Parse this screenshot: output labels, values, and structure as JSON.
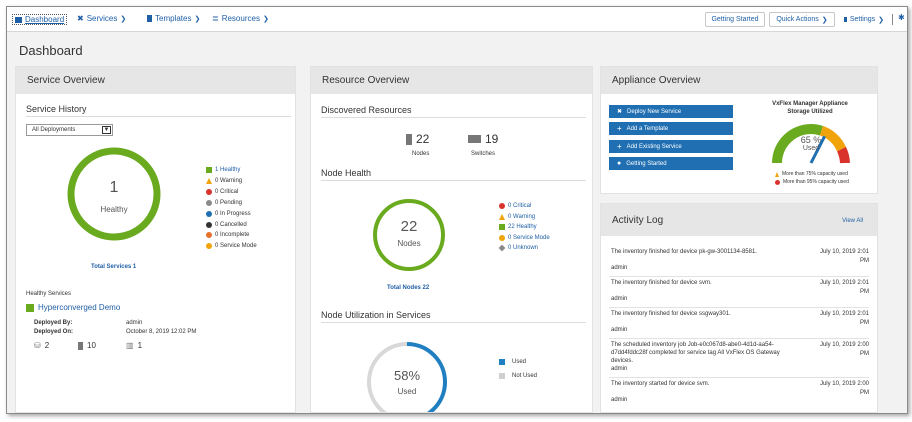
{
  "nav": {
    "dashboard": "Dashboard",
    "services": "Services",
    "templates": "Templates",
    "resources": "Resources"
  },
  "toolbar": {
    "getting_started": "Getting Started",
    "quick_actions": "Quick Actions",
    "settings": "Settings"
  },
  "page": {
    "title": "Dashboard"
  },
  "service_overview": {
    "header": "Service Overview",
    "history_title": "Service History",
    "filter_value": "All Deployments",
    "donut_value": "1",
    "donut_label": "Healthy",
    "healthy_fraction": 1.0,
    "legend": [
      {
        "text": "1 Healthy",
        "color": "#6aaa1e",
        "shape": "square",
        "link": true
      },
      {
        "text": "0 Warning",
        "color": "#f0a30a",
        "shape": "triangle",
        "link": false
      },
      {
        "text": "0 Critical",
        "color": "#d9312b",
        "shape": "circle",
        "link": false
      },
      {
        "text": "0 Pending",
        "color": "#8a8a8a",
        "shape": "circle",
        "link": false
      },
      {
        "text": "0 In Progress",
        "color": "#1f6fb2",
        "shape": "circle",
        "link": false
      },
      {
        "text": "0 Cancelled",
        "color": "#333333",
        "shape": "circle",
        "link": false
      },
      {
        "text": "0 Incomplete",
        "color": "#e8702a",
        "shape": "circle",
        "link": false
      },
      {
        "text": "0 Service Mode",
        "color": "#f0a30a",
        "shape": "circle",
        "link": false
      }
    ],
    "total_services": "Total Services 1",
    "healthy_services_label": "Healthy Services",
    "service_name": "Hyperconverged Demo",
    "deployed_by_label": "Deployed By:",
    "deployed_by_value": "admin",
    "deployed_on_label": "Deployed On:",
    "deployed_on_value": "October 8, 2019 12:02 PM",
    "counts": [
      "2",
      "10",
      "1"
    ]
  },
  "resource_overview": {
    "header": "Resource Overview",
    "discovered_title": "Discovered Resources",
    "nodes_count": "22",
    "nodes_label": "Nodes",
    "switches_count": "19",
    "switches_label": "Switches",
    "node_health_title": "Node Health",
    "donut_value": "22",
    "donut_label": "Nodes",
    "legend": [
      {
        "text": "0 Critical",
        "color": "#d9312b",
        "shape": "circle"
      },
      {
        "text": "0 Warning",
        "color": "#f0a30a",
        "shape": "triangle"
      },
      {
        "text": "22 Healthy",
        "color": "#6aaa1e",
        "shape": "square"
      },
      {
        "text": "0 Service Mode",
        "color": "#f0a30a",
        "shape": "circle"
      },
      {
        "text": "0 Unknown",
        "color": "#8a8a8a",
        "shape": "diamond"
      }
    ],
    "total_nodes": "Total Nodes 22",
    "utilization_title": "Node Utilization in Services",
    "utilization_value": "58%",
    "utilization_label": "Used",
    "utilization_fraction": 0.58,
    "util_legend_used": "Used",
    "util_legend_not_used": "Not Used"
  },
  "appliance_overview": {
    "header": "Appliance Overview",
    "buttons": [
      "Deploy New Service",
      "Add a Template",
      "Add Existing Service",
      "Getting Started"
    ],
    "gauge_title_1": "VxFlex Manager Appliance",
    "gauge_title_2": "Storage Utilized",
    "gauge_value": "65 %",
    "gauge_label": "Used",
    "gauge_fraction": 0.65,
    "warn_75": "More than 75% capacity used",
    "warn_95": "More than 95% capacity used"
  },
  "activity_log": {
    "header": "Activity Log",
    "view_all": "View All",
    "entries": [
      {
        "message": "The inventory finished for device pk-gw-3001134-8581.",
        "time": "July 10, 2019 2:01 PM",
        "user": "admin"
      },
      {
        "message": "The inventory finished for device svm.",
        "time": "July 10, 2019 2:01 PM",
        "user": "admin"
      },
      {
        "message": "The inventory finished for device ssgway301.",
        "time": "July 10, 2019 2:01 PM",
        "user": "admin"
      },
      {
        "message": "The scheduled inventory job Job-e0c067d8-abe0-4d1d-aa54-d7dd4fddc28f completed for service tag All VxFlex OS Gateway devices.",
        "time": "July 10, 2019 2:00 PM",
        "user": "admin"
      },
      {
        "message": "The inventory started for device svm.",
        "time": "July 10, 2019 2:00 PM",
        "user": "admin"
      }
    ]
  }
}
